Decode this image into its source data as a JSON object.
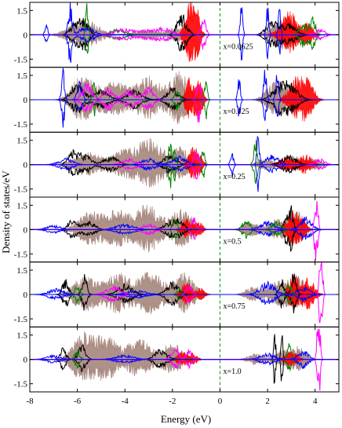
{
  "chart_data": {
    "type": "area",
    "xlabel": "Energy (eV)",
    "ylabel": "Density of states/eV",
    "xlim": [
      -8,
      5
    ],
    "ylim": [
      -2,
      2
    ],
    "x_ticks": [
      -8,
      -6,
      -4,
      -2,
      0,
      2,
      4
    ],
    "y_ticks": [
      1.5,
      0,
      -1.5
    ],
    "fermi_level": 0,
    "fermi_line_color": "#22aa22",
    "series_colors": [
      "#a07f74",
      "#000000",
      "#ff0000",
      "#0000ff",
      "#008000",
      "#ff00ff"
    ],
    "panels": [
      {
        "label": "x=0.0625",
        "bands": [
          {
            "color": "#a07f74",
            "fill": true,
            "mirror": true,
            "centers": [
              -6.0,
              -5.3,
              -3.1,
              -1.8,
              2.6,
              3.0
            ],
            "heights": [
              0.5,
              0.4,
              0.25,
              0.4,
              0.7,
              0.3
            ],
            "widths": [
              0.5,
              0.4,
              0.5,
              0.3,
              0.4,
              0.3
            ]
          },
          {
            "color": "#ff0000",
            "fill": true,
            "mirror": true,
            "centers": [
              -1.3,
              -1.0,
              2.7,
              3.0,
              3.7
            ],
            "heights": [
              1.4,
              1.2,
              0.5,
              0.8,
              0.6
            ],
            "widths": [
              0.18,
              0.15,
              0.3,
              0.25,
              0.2
            ]
          },
          {
            "color": "#000000",
            "fill": false,
            "mirror": true,
            "centers": [
              -6.1,
              -5.7,
              -1.6,
              2.2,
              2.9
            ],
            "heights": [
              0.6,
              0.8,
              1.0,
              0.7,
              0.5
            ],
            "widths": [
              0.2,
              0.18,
              0.2,
              0.25,
              0.3
            ]
          },
          {
            "color": "#0000ff",
            "fill": false,
            "mirror": true,
            "centers": [
              -7.3,
              -6.3,
              -5.6,
              0.9,
              2.0,
              2.5
            ],
            "heights": [
              0.5,
              1.6,
              0.4,
              1.6,
              1.4,
              1.3
            ],
            "widths": [
              0.06,
              0.08,
              0.3,
              0.05,
              0.05,
              0.05
            ]
          },
          {
            "color": "#008000",
            "fill": false,
            "mirror": true,
            "centers": [
              -5.6,
              -4.3,
              3.5,
              3.9
            ],
            "heights": [
              1.5,
              0.3,
              0.7,
              0.9
            ],
            "widths": [
              0.05,
              0.3,
              0.15,
              0.12
            ]
          },
          {
            "color": "#ff00ff",
            "fill": false,
            "mirror": true,
            "centers": [
              -4.1,
              -3.0,
              -2.3,
              -0.7,
              4.2
            ],
            "heights": [
              0.3,
              0.25,
              0.3,
              0.9,
              0.3
            ],
            "widths": [
              0.4,
              0.4,
              0.3,
              0.1,
              0.2
            ]
          }
        ]
      },
      {
        "label": "x=0.125",
        "bands": [
          {
            "color": "#a07f74",
            "fill": true,
            "mirror": true,
            "centers": [
              -5.8,
              -4.5,
              -3.0,
              -1.7,
              2.3,
              3.0
            ],
            "heights": [
              1.2,
              0.9,
              1.1,
              1.3,
              0.8,
              0.5
            ],
            "widths": [
              0.4,
              0.5,
              0.5,
              0.35,
              0.35,
              0.35
            ]
          },
          {
            "color": "#ff0000",
            "fill": true,
            "mirror": true,
            "centers": [
              -1.3,
              -0.9,
              3.2,
              3.7
            ],
            "heights": [
              1.1,
              1.0,
              1.0,
              0.8
            ],
            "widths": [
              0.15,
              0.15,
              0.3,
              0.25
            ]
          },
          {
            "color": "#000000",
            "fill": false,
            "mirror": true,
            "centers": [
              -6.0,
              -5.0,
              -3.6,
              -2.0,
              2.5,
              3.0
            ],
            "heights": [
              0.8,
              0.5,
              0.5,
              0.6,
              0.7,
              0.6
            ],
            "widths": [
              0.25,
              0.3,
              0.3,
              0.25,
              0.3,
              0.3
            ]
          },
          {
            "color": "#0000ff",
            "fill": false,
            "mirror": true,
            "centers": [
              -6.6,
              -5.9,
              0.8,
              1.9,
              2.4
            ],
            "heights": [
              1.6,
              0.9,
              1.2,
              1.5,
              1.3
            ],
            "widths": [
              0.06,
              0.1,
              0.05,
              0.06,
              0.06
            ]
          },
          {
            "color": "#008000",
            "fill": false,
            "mirror": true,
            "centers": [
              -5.3,
              -1.8,
              -0.6
            ],
            "heights": [
              1.0,
              0.6,
              1.2
            ],
            "widths": [
              0.06,
              0.1,
              0.06
            ]
          },
          {
            "color": "#ff00ff",
            "fill": false,
            "mirror": true,
            "centers": [
              -5.6,
              -4.7,
              -3.8,
              -3.0,
              -0.9
            ],
            "heights": [
              0.8,
              0.6,
              0.5,
              0.6,
              1.3
            ],
            "widths": [
              0.2,
              0.2,
              0.25,
              0.2,
              0.08
            ]
          }
        ]
      },
      {
        "label": "x=0.25",
        "bands": [
          {
            "color": "#a07f74",
            "fill": true,
            "mirror": true,
            "centers": [
              -5.6,
              -4.0,
              -2.9,
              -1.7,
              1.9,
              3.1,
              4.0
            ],
            "heights": [
              0.6,
              0.7,
              1.2,
              0.8,
              0.3,
              0.4,
              0.3
            ],
            "widths": [
              0.5,
              0.5,
              0.45,
              0.4,
              0.3,
              0.35,
              0.25
            ]
          },
          {
            "color": "#ff0000",
            "fill": true,
            "mirror": true,
            "centers": [
              -1.2,
              -0.9,
              2.8,
              3.6
            ],
            "heights": [
              0.7,
              0.6,
              0.4,
              0.5
            ],
            "widths": [
              0.15,
              0.15,
              0.3,
              0.25
            ]
          },
          {
            "color": "#000000",
            "fill": false,
            "mirror": true,
            "centers": [
              -6.2,
              -5.7,
              -4.6,
              -2.1,
              2.9
            ],
            "heights": [
              0.6,
              0.5,
              0.4,
              0.5,
              0.45
            ],
            "widths": [
              0.2,
              0.25,
              0.3,
              0.25,
              0.3
            ]
          },
          {
            "color": "#0000ff",
            "fill": false,
            "mirror": true,
            "centers": [
              -6.5,
              -3.0,
              -1.7,
              0.5,
              1.6,
              2.2
            ],
            "heights": [
              0.3,
              0.3,
              0.4,
              0.8,
              1.5,
              0.5
            ],
            "widths": [
              0.3,
              0.3,
              0.3,
              0.06,
              0.05,
              0.25
            ]
          },
          {
            "color": "#008000",
            "fill": false,
            "mirror": true,
            "centers": [
              -2.1,
              -1.9,
              -0.7,
              1.5
            ],
            "heights": [
              1.6,
              1.2,
              0.9,
              1.2
            ],
            "widths": [
              0.05,
              0.05,
              0.06,
              0.08
            ]
          },
          {
            "color": "#ff00ff",
            "fill": false,
            "mirror": true,
            "centers": [
              -3.8,
              -1.0,
              4.2
            ],
            "heights": [
              0.3,
              0.8,
              0.3
            ],
            "widths": [
              0.3,
              0.1,
              0.2
            ]
          }
        ]
      },
      {
        "label": "x=0.5",
        "bands": [
          {
            "color": "#a07f74",
            "fill": true,
            "mirror": true,
            "centers": [
              -5.5,
              -4.3,
              -3.0,
              -1.6,
              1.3,
              2.4,
              3.2
            ],
            "heights": [
              0.8,
              0.9,
              1.2,
              1.0,
              0.4,
              0.5,
              0.9
            ],
            "widths": [
              0.45,
              0.5,
              0.45,
              0.4,
              0.3,
              0.35,
              0.3
            ]
          },
          {
            "color": "#ff0000",
            "fill": true,
            "mirror": true,
            "centers": [
              -1.4,
              -0.9,
              3.0,
              3.4
            ],
            "heights": [
              0.5,
              0.4,
              0.8,
              0.6
            ],
            "widths": [
              0.2,
              0.15,
              0.2,
              0.2
            ]
          },
          {
            "color": "#000000",
            "fill": false,
            "mirror": true,
            "centers": [
              -6.2,
              -5.5,
              -2.1,
              -1.7,
              2.8,
              3.0
            ],
            "heights": [
              0.5,
              0.4,
              0.4,
              0.4,
              0.9,
              1.1
            ],
            "widths": [
              0.2,
              0.25,
              0.25,
              0.2,
              0.1,
              0.08
            ]
          },
          {
            "color": "#0000ff",
            "fill": false,
            "mirror": true,
            "centers": [
              -7.0,
              -4.0,
              2.0,
              3.6
            ],
            "heights": [
              0.2,
              0.25,
              0.4,
              0.6
            ],
            "widths": [
              0.3,
              0.4,
              0.3,
              0.25
            ]
          },
          {
            "color": "#008000",
            "fill": false,
            "mirror": true,
            "centers": [
              -1.9,
              1.1,
              2.4
            ],
            "heights": [
              0.8,
              0.5,
              0.4
            ],
            "widths": [
              0.08,
              0.15,
              0.2
            ]
          },
          {
            "color": "#ff00ff",
            "fill": false,
            "mirror": true,
            "centers": [
              -3.0,
              -1.1,
              4.0,
              4.1
            ],
            "heights": [
              0.3,
              0.6,
              1.7,
              1.5
            ],
            "widths": [
              0.25,
              0.1,
              0.04,
              0.04
            ]
          }
        ]
      },
      {
        "label": "x=0.75",
        "bands": [
          {
            "color": "#a07f74",
            "fill": true,
            "mirror": true,
            "centers": [
              -5.7,
              -4.3,
              -2.9,
              -1.5,
              1.4,
              2.5,
              3.3
            ],
            "heights": [
              0.9,
              1.0,
              1.1,
              1.0,
              0.4,
              0.7,
              0.8
            ],
            "widths": [
              0.45,
              0.5,
              0.45,
              0.4,
              0.3,
              0.35,
              0.3
            ]
          },
          {
            "color": "#ff0000",
            "fill": true,
            "mirror": true,
            "centers": [
              -1.4,
              -0.8,
              3.1,
              3.7
            ],
            "heights": [
              0.6,
              0.3,
              0.9,
              0.8
            ],
            "widths": [
              0.2,
              0.15,
              0.2,
              0.25
            ]
          },
          {
            "color": "#000000",
            "fill": false,
            "mirror": true,
            "centers": [
              -6.5,
              -5.7,
              -4.0,
              -2.0,
              2.6,
              3.1
            ],
            "heights": [
              0.8,
              1.1,
              0.5,
              0.6,
              0.8,
              1.1
            ],
            "widths": [
              0.12,
              0.1,
              0.3,
              0.25,
              0.1,
              0.1
            ]
          },
          {
            "color": "#0000ff",
            "fill": false,
            "mirror": true,
            "centers": [
              -6.9,
              -3.5,
              2.0,
              3.5
            ],
            "heights": [
              0.3,
              0.2,
              0.6,
              0.4
            ],
            "widths": [
              0.3,
              0.4,
              0.3,
              0.25
            ]
          },
          {
            "color": "#008000",
            "fill": false,
            "mirror": true,
            "centers": [
              -6.0,
              -1.7,
              2.9
            ],
            "heights": [
              0.5,
              0.3,
              0.6
            ],
            "widths": [
              0.1,
              0.1,
              0.1
            ]
          },
          {
            "color": "#ff00ff",
            "fill": false,
            "mirror": true,
            "centers": [
              -4.5,
              -1.3,
              4.2,
              4.3
            ],
            "heights": [
              0.4,
              0.5,
              1.7,
              1.6
            ],
            "widths": [
              0.3,
              0.12,
              0.04,
              0.04
            ]
          }
        ]
      },
      {
        "label": "x=1.0",
        "bands": [
          {
            "color": "#a07f74",
            "fill": true,
            "mirror": true,
            "centers": [
              -5.8,
              -4.8,
              -3.4,
              -2.0,
              1.5,
              2.6,
              3.3
            ],
            "heights": [
              1.2,
              1.1,
              1.0,
              0.8,
              0.3,
              0.4,
              0.6
            ],
            "widths": [
              0.4,
              0.45,
              0.45,
              0.4,
              0.3,
              0.3,
              0.3
            ]
          },
          {
            "color": "#ff0000",
            "fill": true,
            "mirror": true,
            "centers": [
              -1.6,
              -1.1,
              3.0
            ],
            "heights": [
              0.4,
              0.3,
              0.4
            ],
            "widths": [
              0.2,
              0.15,
              0.25
            ]
          },
          {
            "color": "#000000",
            "fill": false,
            "mirror": true,
            "centers": [
              -6.6,
              -5.8,
              -2.5,
              2.3,
              2.6
            ],
            "heights": [
              0.6,
              0.7,
              0.5,
              1.6,
              1.5
            ],
            "widths": [
              0.12,
              0.15,
              0.25,
              0.04,
              0.04
            ]
          },
          {
            "color": "#0000ff",
            "fill": false,
            "mirror": true,
            "centers": [
              -7.0,
              -4.0,
              2.0,
              3.5
            ],
            "heights": [
              0.2,
              0.2,
              0.3,
              0.5
            ],
            "widths": [
              0.3,
              0.4,
              0.3,
              0.2
            ]
          },
          {
            "color": "#008000",
            "fill": false,
            "mirror": true,
            "centers": [
              -6.0,
              2.9
            ],
            "heights": [
              0.5,
              0.8
            ],
            "widths": [
              0.1,
              0.08
            ]
          },
          {
            "color": "#ff00ff",
            "fill": false,
            "mirror": true,
            "centers": [
              -1.9,
              -1.3,
              4.1,
              4.2
            ],
            "heights": [
              0.6,
              0.5,
              1.6,
              1.7
            ],
            "widths": [
              0.15,
              0.12,
              0.04,
              0.04
            ]
          }
        ]
      }
    ]
  }
}
